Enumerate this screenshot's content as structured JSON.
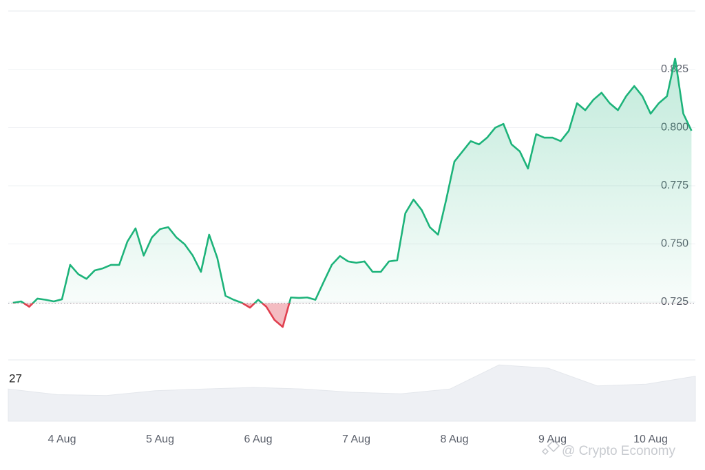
{
  "chart_data": {
    "type": "line",
    "categories": [
      null,
      null,
      null,
      null,
      null,
      null,
      "4 Aug",
      null,
      null,
      null,
      null,
      null,
      null,
      null,
      null,
      null,
      null,
      null,
      "5 Aug",
      null,
      null,
      null,
      null,
      null,
      null,
      null,
      null,
      null,
      null,
      null,
      "6 Aug",
      null,
      null,
      null,
      null,
      null,
      null,
      null,
      null,
      null,
      null,
      null,
      "7 Aug",
      null,
      null,
      null,
      null,
      null,
      null,
      null,
      null,
      null,
      null,
      null,
      "8 Aug",
      null,
      null,
      null,
      null,
      null,
      null,
      null,
      null,
      null,
      null,
      null,
      "9 Aug",
      null,
      null,
      null,
      null,
      null,
      null,
      null,
      null,
      null,
      null,
      null,
      "10 Aug",
      null,
      null,
      null,
      null,
      null
    ],
    "values": [
      0.7247,
      0.7253,
      0.723,
      0.7265,
      0.726,
      0.7253,
      0.7262,
      0.741,
      0.737,
      0.735,
      0.7386,
      0.7395,
      0.741,
      0.741,
      0.751,
      0.7567,
      0.745,
      0.7528,
      0.7564,
      0.7572,
      0.7528,
      0.7499,
      0.745,
      0.738,
      0.754,
      0.744,
      0.7277,
      0.726,
      0.7247,
      0.7226,
      0.726,
      0.723,
      0.7173,
      0.7143,
      0.727,
      0.7268,
      0.727,
      0.726,
      0.7336,
      0.741,
      0.7448,
      0.7425,
      0.7419,
      0.7425,
      0.738,
      0.738,
      0.7425,
      0.743,
      0.7632,
      0.7691,
      0.7646,
      0.7572,
      0.754,
      0.7691,
      0.7854,
      0.7898,
      0.7942,
      0.7928,
      0.7957,
      0.8,
      0.8016,
      0.7928,
      0.7898,
      0.7824,
      0.7972,
      0.7957,
      0.7957,
      0.7942,
      0.7987,
      0.8105,
      0.8075,
      0.812,
      0.815,
      0.8105,
      0.8075,
      0.8135,
      0.8179,
      0.8135,
      0.806,
      0.8105,
      0.8135,
      0.8297,
      0.806,
      0.7987
    ],
    "baseline": 0.7245,
    "color": "#1db37a",
    "down_color": "#e0404f",
    "ylim": [
      0.7,
      0.85
    ],
    "yticks": [
      0.725,
      {
        "value": 0.75,
        "label": "0.750"
      },
      0.775,
      {
        "value": 0.8,
        "label": "0.800"
      },
      0.825
    ],
    "grid": true,
    "volume": {
      "label": "27",
      "values": [
        20,
        16.5,
        16,
        19,
        20,
        21,
        20,
        18,
        17,
        20,
        35,
        33,
        22,
        23,
        28
      ],
      "ylim": [
        0,
        36
      ],
      "color": "#eef0f4"
    }
  },
  "watermark": "@ Crypto Economy"
}
